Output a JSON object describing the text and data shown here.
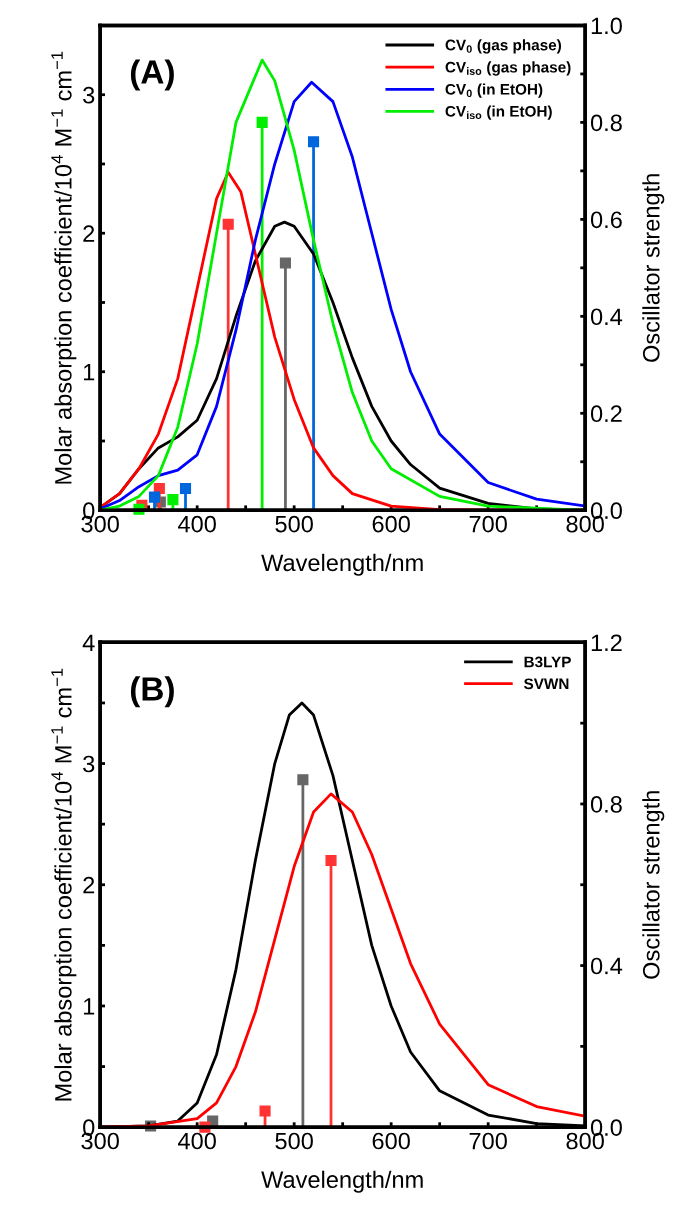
{
  "chart_data": [
    {
      "type": "line",
      "annotations": [
        "(A)"
      ],
      "xlabel": "Wavelength/nm",
      "ylabel": "Molar absorption coefficient/10$^{4}$ M$^{−1}$ cm$^{−1}$",
      "y2label": "Oscillator strength",
      "legend": "top right",
      "xlim": [
        300,
        800
      ],
      "xticks": [
        300,
        {
          "value": 350,
          "label": null
        },
        400,
        {
          "value": 450,
          "label": null
        },
        500,
        {
          "value": 550,
          "label": null
        },
        600,
        {
          "value": 650,
          "label": null
        },
        700,
        {
          "value": 750,
          "label": null
        },
        800
      ],
      "ylim": [
        0,
        3.5
      ],
      "yticks": [
        0,
        {
          "value": 0.5,
          "label": null
        },
        1,
        {
          "value": 1.5,
          "label": null
        },
        2,
        {
          "value": 2.5,
          "label": null
        },
        3
      ],
      "y2lim": [
        0,
        1.0
      ],
      "y2ticks": [
        {
          "value": 0,
          "label": "0.0"
        },
        {
          "value": 0.1,
          "label": null
        },
        0.2,
        {
          "value": 0.3,
          "label": null
        },
        0.4,
        {
          "value": 0.5,
          "label": null
        },
        0.6,
        {
          "value": 0.7,
          "label": null
        },
        0.8,
        {
          "value": 0.9,
          "label": null
        },
        {
          "value": 1,
          "label": "1.0"
        }
      ],
      "series": [
        {
          "name": "CV$_{0}$ (gas phase)",
          "color": "#000000",
          "x": [
            300,
            320,
            340,
            360,
            380,
            400,
            420,
            440,
            460,
            480,
            490,
            500,
            520,
            540,
            560,
            580,
            600,
            620,
            650,
            700,
            750,
            800
          ],
          "values": [
            0.02,
            0.12,
            0.3,
            0.45,
            0.53,
            0.65,
            0.95,
            1.4,
            1.8,
            2.05,
            2.08,
            2.05,
            1.85,
            1.5,
            1.1,
            0.75,
            0.5,
            0.33,
            0.16,
            0.05,
            0.01,
            0.0
          ]
        },
        {
          "name": "CV$_{iso}$ (gas phase)",
          "color": "#ff0000",
          "x": [
            300,
            320,
            340,
            360,
            380,
            400,
            420,
            432,
            445,
            460,
            480,
            500,
            520,
            540,
            560,
            600,
            650,
            700,
            800
          ],
          "values": [
            0.02,
            0.12,
            0.3,
            0.55,
            0.95,
            1.6,
            2.25,
            2.44,
            2.3,
            1.85,
            1.25,
            0.8,
            0.45,
            0.25,
            0.12,
            0.03,
            0.005,
            0.0,
            0.0
          ]
        },
        {
          "name": "CV$_{0}$ (in EtOH)",
          "color": "#0000ff",
          "x": [
            300,
            320,
            340,
            360,
            380,
            400,
            420,
            440,
            460,
            480,
            500,
            518,
            540,
            560,
            580,
            600,
            620,
            650,
            700,
            750,
            800
          ],
          "values": [
            0.01,
            0.07,
            0.17,
            0.25,
            0.29,
            0.4,
            0.75,
            1.3,
            1.95,
            2.5,
            2.95,
            3.09,
            2.95,
            2.55,
            2.0,
            1.45,
            1.0,
            0.55,
            0.2,
            0.08,
            0.03
          ]
        },
        {
          "name": "CV$_{iso}$ (in EtOH)",
          "color": "#00ee00",
          "x": [
            300,
            320,
            340,
            360,
            380,
            400,
            420,
            440,
            467,
            480,
            500,
            520,
            540,
            560,
            580,
            600,
            650,
            700,
            800
          ],
          "values": [
            0.0,
            0.03,
            0.1,
            0.25,
            0.6,
            1.2,
            2.0,
            2.8,
            3.25,
            3.1,
            2.6,
            1.95,
            1.35,
            0.85,
            0.5,
            0.3,
            0.1,
            0.03,
            0.0
          ]
        },
        {
          "type": "lollipop",
          "axis": "y2",
          "marker": "square",
          "color": "#666666",
          "x": [
            362,
            491
          ],
          "values": [
            0.017,
            0.51
          ]
        },
        {
          "type": "lollipop",
          "axis": "y2",
          "marker": "square",
          "color": "#ff3333",
          "x": [
            343,
            361,
            432
          ],
          "values": [
            0.01,
            0.045,
            0.59
          ]
        },
        {
          "type": "lollipop",
          "axis": "y2",
          "marker": "square",
          "color": "#0066dd",
          "x": [
            356,
            388,
            520
          ],
          "values": [
            0.027,
            0.045,
            0.76
          ]
        },
        {
          "type": "lollipop",
          "axis": "y2",
          "marker": "square",
          "color": "#00ee00",
          "x": [
            340,
            375,
            467
          ],
          "values": [
            0.002,
            0.022,
            0.8
          ]
        }
      ]
    },
    {
      "type": "line",
      "annotations": [
        "(B)"
      ],
      "xlabel": "Wavelength/nm",
      "ylabel": "Molar absorption coefficient/10$^{4}$ M$^{−1}$ cm$^{−1}$",
      "y2label": "Oscillator strength",
      "legend": "top right",
      "xlim": [
        300,
        800
      ],
      "xticks": [
        300,
        {
          "value": 350,
          "label": null
        },
        400,
        {
          "value": 450,
          "label": null
        },
        500,
        {
          "value": 550,
          "label": null
        },
        600,
        {
          "value": 650,
          "label": null
        },
        700,
        {
          "value": 750,
          "label": null
        },
        800
      ],
      "ylim": [
        0,
        4
      ],
      "yticks": [
        0,
        {
          "value": 0.5,
          "label": null
        },
        1,
        {
          "value": 1.5,
          "label": null
        },
        2,
        {
          "value": 2.5,
          "label": null
        },
        3,
        {
          "value": 3.5,
          "label": null
        },
        4
      ],
      "y2lim": [
        0,
        1.2
      ],
      "y2ticks": [
        {
          "value": 0,
          "label": "0.0"
        },
        {
          "value": 0.2,
          "label": null
        },
        0.4,
        {
          "value": 0.6,
          "label": null
        },
        0.8,
        {
          "value": 1.0,
          "label": null
        },
        1.2
      ],
      "series": [
        {
          "name": "B3LYP",
          "color": "#000000",
          "x": [
            300,
            350,
            380,
            400,
            420,
            440,
            460,
            480,
            495,
            508,
            520,
            540,
            560,
            580,
            600,
            620,
            650,
            700,
            750,
            800
          ],
          "values": [
            0.0,
            0.01,
            0.05,
            0.2,
            0.6,
            1.3,
            2.2,
            3.0,
            3.4,
            3.5,
            3.4,
            2.9,
            2.2,
            1.5,
            1.0,
            0.62,
            0.3,
            0.1,
            0.03,
            0.01
          ]
        },
        {
          "name": "SVWN",
          "color": "#ff0000",
          "x": [
            300,
            350,
            400,
            420,
            440,
            460,
            480,
            500,
            520,
            538,
            560,
            580,
            600,
            620,
            650,
            700,
            750,
            800
          ],
          "values": [
            0.0,
            0.01,
            0.07,
            0.2,
            0.5,
            0.95,
            1.55,
            2.15,
            2.6,
            2.75,
            2.6,
            2.25,
            1.8,
            1.35,
            0.85,
            0.35,
            0.17,
            0.09
          ]
        },
        {
          "type": "lollipop",
          "axis": "y2",
          "marker": "square",
          "color": "#666666",
          "x": [
            352,
            416,
            509
          ],
          "values": [
            0.003,
            0.015,
            0.86
          ]
        },
        {
          "type": "lollipop",
          "axis": "y2",
          "marker": "square",
          "color": "#ff3333",
          "x": [
            408,
            470,
            538
          ],
          "values": [
            0.0,
            0.04,
            0.66
          ]
        }
      ]
    }
  ]
}
